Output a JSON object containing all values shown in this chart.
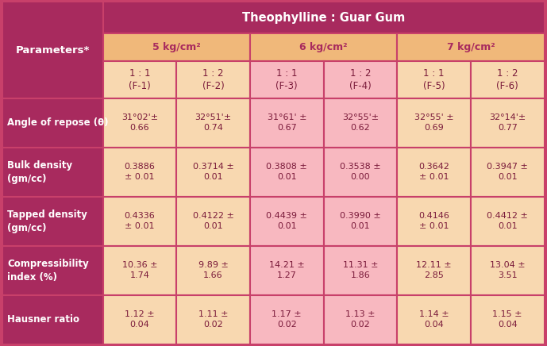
{
  "title": "Theophylline : Guar Gum",
  "title_bg": "#a82a5e",
  "title_color": "#ffffff",
  "header2_labels": [
    "5 kg/cm²",
    "6 kg/cm²",
    "7 kg/cm²"
  ],
  "header3_labels": [
    "1 : 1\n(F-1)",
    "1 : 2\n(F-2)",
    "1 : 1\n(F-3)",
    "1 : 2\n(F-4)",
    "1 : 1\n(F-5)",
    "1 : 2\n(F-6)"
  ],
  "row_header_bg": "#a82a5e",
  "row_header_color": "#ffffff",
  "row_headers": [
    "Parameters*",
    "Angle of repose (θ)",
    "Bulk density\n(gm/cc)",
    "Tapped density\n(gm/cc)",
    "Compressibility\nindex (%)",
    "Hausner ratio"
  ],
  "col_header_bg": "#f0b87a",
  "col_header_color": "#a82a5e",
  "header3_bg": "#f8c8a0",
  "cell_bg_orange": "#f8d8b0",
  "cell_bg_pink": "#f8b8c0",
  "data_text_color": "#7a1a3a",
  "data": [
    [
      "31°02'±\n0.66",
      "32°51'±\n0.74",
      "31°61' ±\n0.67",
      "32°55'±\n0.62",
      "32°55' ±\n0.69",
      "32°14'±\n0.77"
    ],
    [
      "0.3886\n± 0.01",
      "0.3714 ±\n0.01",
      "0.3808 ±\n0.01",
      "0.3538 ±\n0.00",
      "0.3642\n± 0.01",
      "0.3947 ±\n0.01"
    ],
    [
      "0.4336\n± 0.01",
      "0.4122 ±\n0.01",
      "0.4439 ±\n0.01",
      "0.3990 ±\n0.01",
      "0.4146\n± 0.01",
      "0.4412 ±\n0.01"
    ],
    [
      "10.36 ±\n1.74",
      "9.89 ±\n1.66",
      "14.21 ±\n1.27",
      "11.31 ±\n1.86",
      "12.11 ±\n2.85",
      "13.04 ±\n3.51"
    ],
    [
      "1.12 ±\n0.04",
      "1.11 ±\n0.02",
      "1.17 ±\n0.02",
      "1.13 ±\n0.02",
      "1.14 ±\n0.04",
      "1.15 ±\n0.04"
    ]
  ],
  "col_colors": [
    "orange",
    "orange",
    "pink",
    "pink",
    "orange",
    "orange"
  ],
  "border_color": "#c8406a",
  "figsize": [
    6.89,
    4.36
  ],
  "dpi": 100
}
